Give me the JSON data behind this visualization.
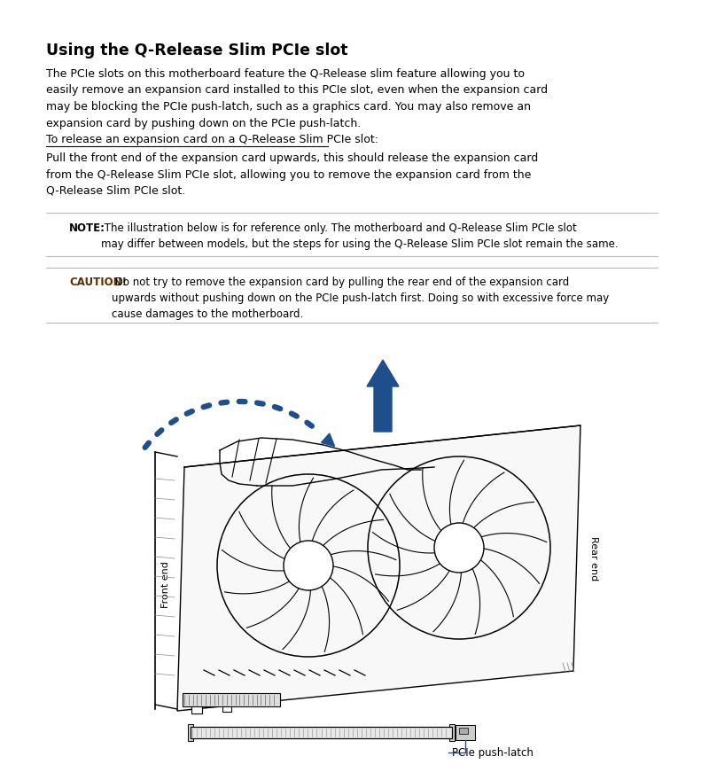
{
  "title": "Using the Q-Release Slim PCIe slot",
  "bg_color": "#ffffff",
  "text_color": "#000000",
  "blue_color": "#1f4e8c",
  "note_color": "#5d2e00",
  "body_text": "The PCIe slots on this motherboard feature the Q-Release slim feature allowing you to\neasily remove an expansion card installed to this PCIe slot, even when the expansion card\nmay be blocking the PCIe push-latch, such as a graphics card. You may also remove an\nexpansion card by pushing down on the PCIe push-latch.",
  "link_text": "To release an expansion card on a Q-Release Slim PCIe slot:",
  "instruction_text": "Pull the front end of the expansion card upwards, this should release the expansion card\nfrom the Q-Release Slim PCIe slot, allowing you to remove the expansion card from the\nQ-Release Slim PCIe slot.",
  "note_label": "NOTE:",
  "note_text": " The illustration below is for reference only. The motherboard and Q-Release Slim PCIe slot\nmay differ between models, but the steps for using the Q-Release Slim PCIe slot remain the same.",
  "caution_label": "CAUTION!",
  "caution_text": " Do not try to remove the expansion card by pulling the rear end of the expansion card\nupwards without pushing down on the PCIe push-latch first. Doing so with excessive force may\ncause damages to the motherboard.",
  "front_end_label": "Front end",
  "rear_end_label": "Rear end",
  "pcie_latch_label": "PCIe push-latch",
  "separator_color": "#bbbbbb",
  "line_color": "#000000",
  "gray_light": "#f5f5f5",
  "gray_mid": "#cccccc"
}
